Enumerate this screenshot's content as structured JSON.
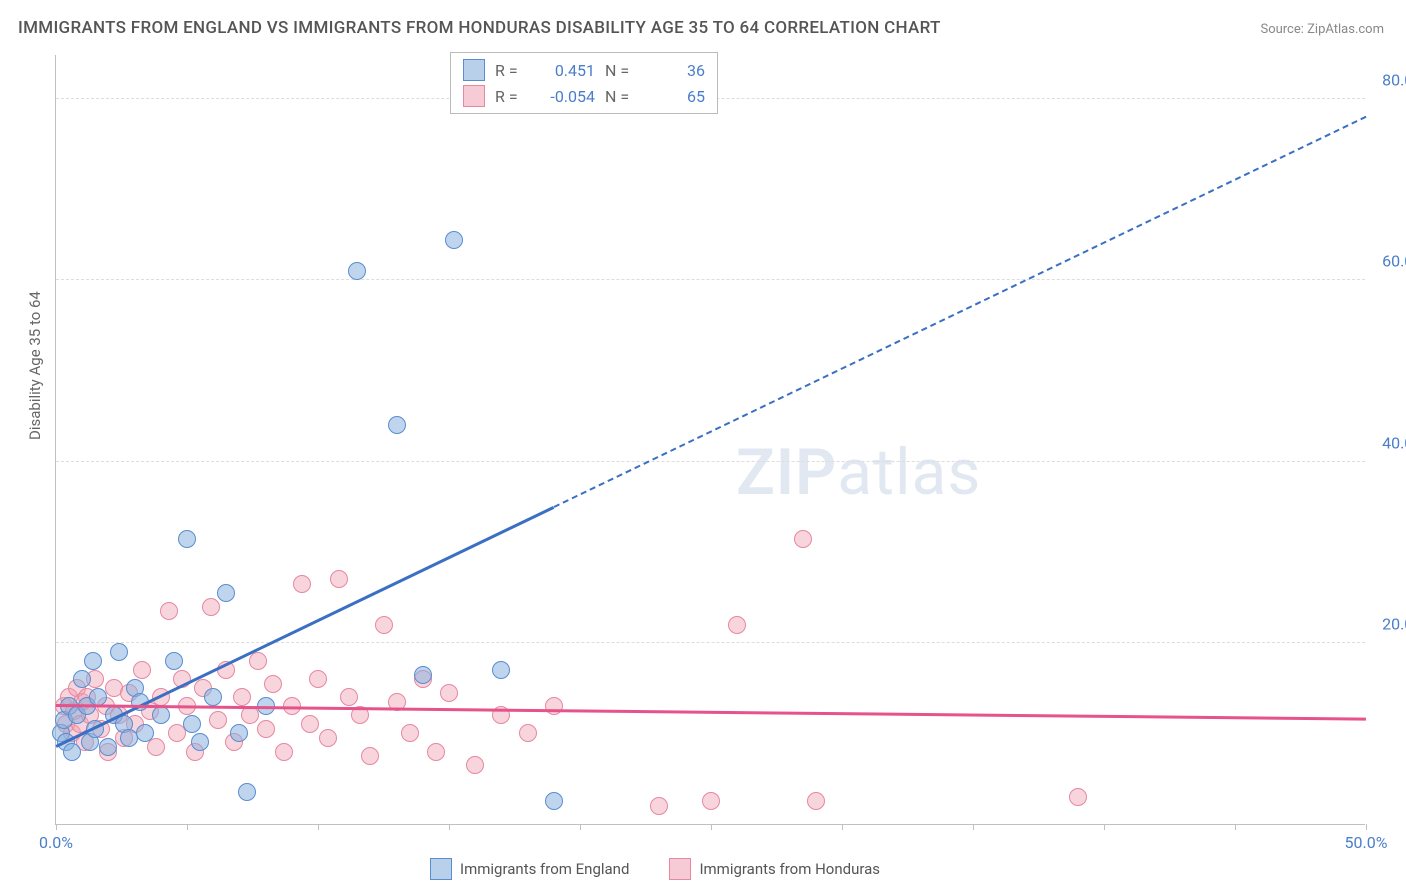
{
  "title": "IMMIGRANTS FROM ENGLAND VS IMMIGRANTS FROM HONDURAS DISABILITY AGE 35 TO 64 CORRELATION CHART",
  "source": "Source: ZipAtlas.com",
  "watermark": "ZIPatlas",
  "chart": {
    "type": "scatter",
    "y_label": "Disability Age 35 to 64",
    "xlim": [
      0,
      50
    ],
    "ylim": [
      0,
      85
    ],
    "x_ticks": [
      0,
      5,
      10,
      15,
      20,
      25,
      30,
      35,
      40,
      45,
      50
    ],
    "x_tick_labels": {
      "0": "0.0%",
      "50": "50.0%"
    },
    "y_ticks": [
      20,
      40,
      60,
      80
    ],
    "y_tick_labels": [
      "20.0%",
      "40.0%",
      "60.0%",
      "80.0%"
    ],
    "grid_color": "#dddddd",
    "axis_color": "#c0c0c0",
    "series": [
      {
        "name": "Immigrants from England",
        "color_fill": "rgba(138,176,222,0.55)",
        "color_stroke": "#5a8dd0",
        "R": "0.451",
        "N": "36",
        "trend": {
          "x1": 0,
          "y1": 8.5,
          "x2": 50,
          "y2": 78,
          "solid_until_x": 19,
          "color": "#3a6fc4"
        },
        "points": [
          [
            0.2,
            10
          ],
          [
            0.3,
            11.5
          ],
          [
            0.4,
            9
          ],
          [
            0.5,
            13
          ],
          [
            0.6,
            8
          ],
          [
            0.8,
            12
          ],
          [
            1,
            16
          ],
          [
            1.2,
            13
          ],
          [
            1.3,
            9
          ],
          [
            1.4,
            18
          ],
          [
            1.5,
            10.5
          ],
          [
            1.6,
            14
          ],
          [
            2,
            8.5
          ],
          [
            2.2,
            12
          ],
          [
            2.4,
            19
          ],
          [
            2.6,
            11
          ],
          [
            2.8,
            9.5
          ],
          [
            3,
            15
          ],
          [
            3.2,
            13.5
          ],
          [
            3.4,
            10
          ],
          [
            4,
            12
          ],
          [
            4.5,
            18
          ],
          [
            5,
            31.5
          ],
          [
            5.2,
            11
          ],
          [
            5.5,
            9
          ],
          [
            6,
            14
          ],
          [
            6.5,
            25.5
          ],
          [
            7,
            10
          ],
          [
            7.3,
            3.5
          ],
          [
            8,
            13
          ],
          [
            11.5,
            61
          ],
          [
            13,
            44
          ],
          [
            14,
            16.5
          ],
          [
            15.2,
            64.5
          ],
          [
            17,
            17
          ],
          [
            19,
            2.5
          ]
        ]
      },
      {
        "name": "Immigrants from Honduras",
        "color_fill": "rgba(240,160,180,0.45)",
        "color_stroke": "#e688a0",
        "R": "-0.054",
        "N": "65",
        "trend": {
          "x1": 0,
          "y1": 13,
          "x2": 50,
          "y2": 11.5,
          "solid_until_x": 50,
          "color": "#e6528a"
        },
        "points": [
          [
            0.3,
            13
          ],
          [
            0.4,
            11
          ],
          [
            0.5,
            14
          ],
          [
            0.6,
            10
          ],
          [
            0.7,
            12.5
          ],
          [
            0.8,
            15
          ],
          [
            0.9,
            11
          ],
          [
            1,
            13.5
          ],
          [
            1.1,
            9
          ],
          [
            1.2,
            14
          ],
          [
            1.3,
            12
          ],
          [
            1.5,
            16
          ],
          [
            1.7,
            10.5
          ],
          [
            1.9,
            13
          ],
          [
            2,
            8
          ],
          [
            2.2,
            15
          ],
          [
            2.4,
            12
          ],
          [
            2.6,
            9.5
          ],
          [
            2.8,
            14.5
          ],
          [
            3,
            11
          ],
          [
            3.3,
            17
          ],
          [
            3.6,
            12.5
          ],
          [
            3.8,
            8.5
          ],
          [
            4,
            14
          ],
          [
            4.3,
            23.5
          ],
          [
            4.6,
            10
          ],
          [
            4.8,
            16
          ],
          [
            5,
            13
          ],
          [
            5.3,
            8
          ],
          [
            5.6,
            15
          ],
          [
            5.9,
            24
          ],
          [
            6.2,
            11.5
          ],
          [
            6.5,
            17
          ],
          [
            6.8,
            9
          ],
          [
            7.1,
            14
          ],
          [
            7.4,
            12
          ],
          [
            7.7,
            18
          ],
          [
            8,
            10.5
          ],
          [
            8.3,
            15.5
          ],
          [
            8.7,
            8
          ],
          [
            9,
            13
          ],
          [
            9.4,
            26.5
          ],
          [
            9.7,
            11
          ],
          [
            10,
            16
          ],
          [
            10.4,
            9.5
          ],
          [
            10.8,
            27
          ],
          [
            11.2,
            14
          ],
          [
            11.6,
            12
          ],
          [
            12,
            7.5
          ],
          [
            12.5,
            22
          ],
          [
            13,
            13.5
          ],
          [
            13.5,
            10
          ],
          [
            14,
            16
          ],
          [
            14.5,
            8
          ],
          [
            15,
            14.5
          ],
          [
            16,
            6.5
          ],
          [
            17,
            12
          ],
          [
            18,
            10
          ],
          [
            19,
            13
          ],
          [
            23,
            2
          ],
          [
            25,
            2.5
          ],
          [
            26,
            22
          ],
          [
            28.5,
            31.5
          ],
          [
            29,
            2.5
          ],
          [
            39,
            3
          ]
        ]
      }
    ]
  },
  "legend_top": {
    "rows": [
      {
        "swatch": "blue",
        "r_label": "R =",
        "r_val": "0.451",
        "n_label": "N =",
        "n_val": "36"
      },
      {
        "swatch": "pink",
        "r_label": "R =",
        "r_val": "-0.054",
        "n_label": "N =",
        "n_val": "65"
      }
    ]
  },
  "legend_bottom": {
    "items": [
      {
        "swatch": "blue",
        "label": "Immigrants from England"
      },
      {
        "swatch": "pink",
        "label": "Immigrants from Honduras"
      }
    ]
  }
}
